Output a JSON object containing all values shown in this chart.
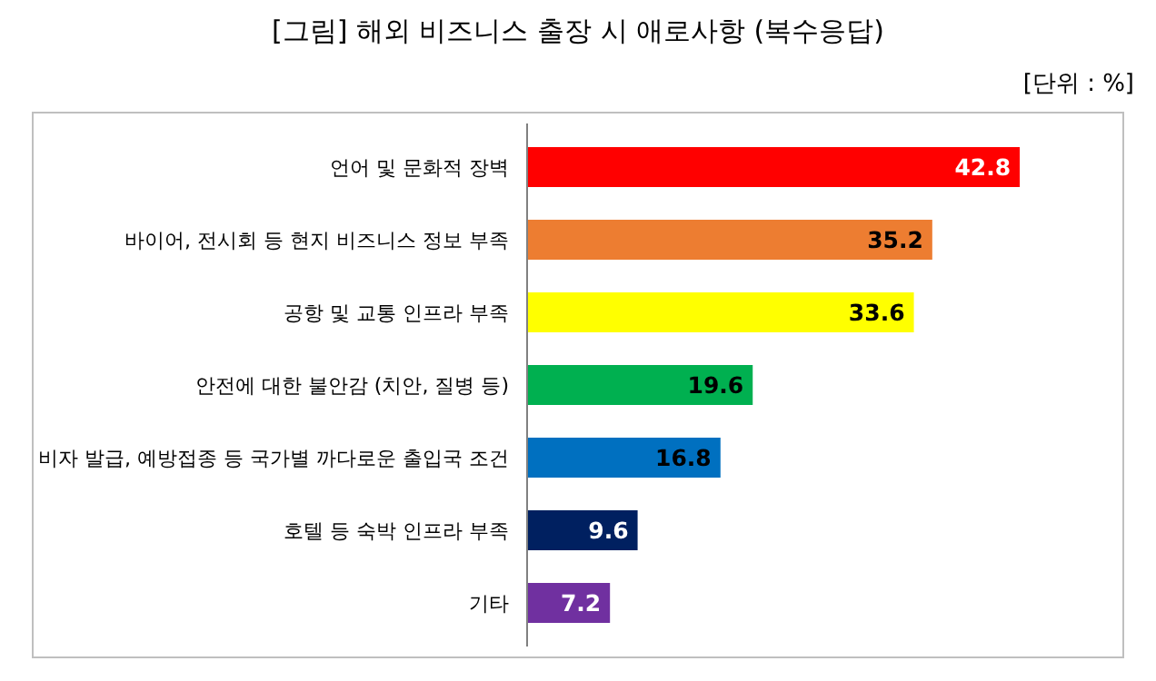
{
  "chart_data": {
    "type": "bar",
    "orientation": "horizontal",
    "title": "[그림] 해외 비즈니스 출장 시 애로사항 (복수응답)",
    "annotations": [
      "[단위 : %]"
    ],
    "categories": [
      "언어 및 문화적 장벽",
      "바이어, 전시회 등 현지 비즈니스 정보 부족",
      "공항 및 교통 인프라 부족",
      "안전에 대한 불안감 (치안, 질병 등)",
      "비자 발급, 예방접종 등 국가별 까다로운 출입국 조건",
      "호텔 등 숙박 인프라 부족",
      "기타"
    ],
    "values": [
      42.8,
      35.2,
      33.6,
      19.6,
      16.8,
      9.6,
      7.2
    ],
    "colors": [
      "#ff0000",
      "#ed7d31",
      "#ffff00",
      "#00b050",
      "#0070c0",
      "#002060",
      "#7030a0"
    ],
    "data_labels": true
  }
}
